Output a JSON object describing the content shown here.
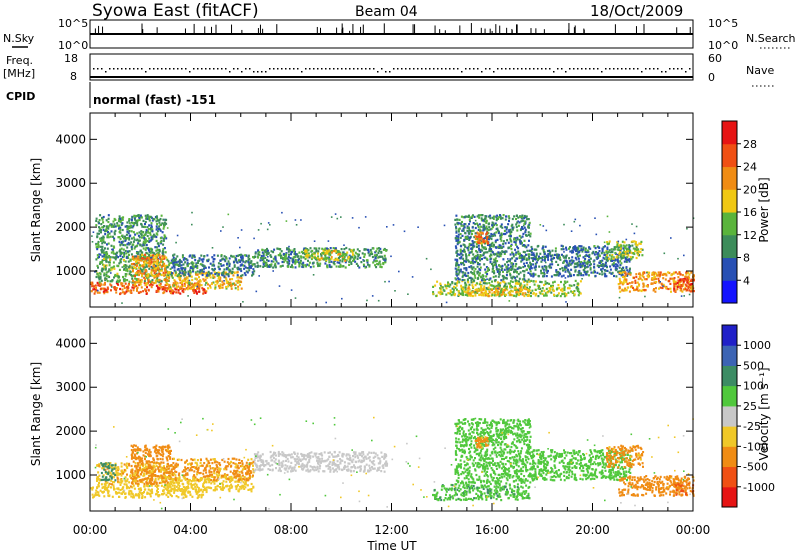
{
  "header": {
    "title": "Syowa East (fitACF)",
    "beam": "Beam 04",
    "date": "18/Oct/2009"
  },
  "strip_noise": {
    "left_label": "N.Sky",
    "right_label": "N.Search",
    "left_ticks": [
      "10^5",
      "10^0"
    ],
    "right_ticks": [
      "10^5",
      "10^0"
    ]
  },
  "strip_freq": {
    "left_label_1": "Freq.",
    "left_label_2": "[MHz]",
    "right_label": "Nave",
    "left_ticks": [
      "18",
      "8"
    ],
    "right_ticks": [
      "60",
      "0"
    ]
  },
  "cpid": {
    "label": "CPID",
    "value": "normal (fast) -151"
  },
  "power_panel": {
    "ylabel": "Slant Range [km]",
    "ytick_labels": [
      "1000",
      "2000",
      "3000",
      "4000"
    ],
    "colorbar_label": "Power [dB]",
    "colorbar_ticks": [
      "4",
      "8",
      "12",
      "16",
      "20",
      "24",
      "28"
    ]
  },
  "velocity_panel": {
    "ylabel": "Slant Range [km]",
    "ytick_labels": [
      "1000",
      "2000",
      "3000",
      "4000"
    ],
    "colorbar_label": "Velocity [m s⁻¹]",
    "colorbar_ticks": [
      "1000",
      "500",
      "100",
      "25",
      "-25",
      "-100",
      "-500",
      "-1000"
    ]
  },
  "x_axis": {
    "label": "Time UT",
    "tick_labels": [
      "00:00",
      "04:00",
      "08:00",
      "12:00",
      "16:00",
      "20:00",
      "00:00"
    ]
  },
  "colors": {
    "power_scale": [
      "#1414ff",
      "#2850b4",
      "#3c8c5a",
      "#5ab43c",
      "#f0c814",
      "#f08c14",
      "#f05014",
      "#e61414"
    ],
    "velocity_scale": [
      "#2020c8",
      "#3c64b4",
      "#3c8c64",
      "#50c83c",
      "#c8c8c8",
      "#f0c828",
      "#f08c14",
      "#f05014",
      "#e61414"
    ]
  },
  "chart_data": [
    {
      "type": "heatmap",
      "title": "Power",
      "xlabel": "Time UT",
      "ylabel": "Slant Range [km]",
      "xlim": [
        0,
        24
      ],
      "ylim": [
        180,
        4600
      ],
      "colorbar_range": [
        0,
        30
      ],
      "regions": [
        {
          "t0": 0.0,
          "t1": 4.6,
          "r0": 500,
          "r1": 760,
          "value": 24
        },
        {
          "t0": 0.2,
          "t1": 3.2,
          "r0": 760,
          "r1": 1300,
          "value": 12
        },
        {
          "t0": 0.2,
          "t1": 3.0,
          "r0": 1300,
          "r1": 2300,
          "value": 10
        },
        {
          "t0": 1.6,
          "t1": 3.0,
          "r0": 700,
          "r1": 1400,
          "value": 20
        },
        {
          "t0": 3.0,
          "t1": 6.0,
          "r0": 600,
          "r1": 1000,
          "value": 18
        },
        {
          "t0": 3.2,
          "t1": 6.5,
          "r0": 900,
          "r1": 1400,
          "value": 8
        },
        {
          "t0": 6.5,
          "t1": 11.8,
          "r0": 1100,
          "r1": 1550,
          "value": 10
        },
        {
          "t0": 8.5,
          "t1": 10.5,
          "r0": 1250,
          "r1": 1500,
          "value": 16
        },
        {
          "t0": 13.6,
          "t1": 19.5,
          "r0": 450,
          "r1": 800,
          "value": 14
        },
        {
          "t0": 14.5,
          "t1": 17.5,
          "r0": 800,
          "r1": 2300,
          "value": 9
        },
        {
          "t0": 15.3,
          "t1": 15.8,
          "r0": 1650,
          "r1": 1900,
          "value": 22
        },
        {
          "t0": 15.0,
          "t1": 17.5,
          "r0": 450,
          "r1": 650,
          "value": 18
        },
        {
          "t0": 17.5,
          "t1": 21.5,
          "r0": 900,
          "r1": 1600,
          "value": 8
        },
        {
          "t0": 20.5,
          "t1": 22.0,
          "r0": 1300,
          "r1": 1700,
          "value": 14
        },
        {
          "t0": 21.0,
          "t1": 24.0,
          "r0": 550,
          "r1": 1000,
          "value": 20
        },
        {
          "t0": 23.2,
          "t1": 24.0,
          "r0": 550,
          "r1": 850,
          "value": 26
        }
      ]
    },
    {
      "type": "heatmap",
      "title": "Velocity",
      "xlabel": "Time UT",
      "ylabel": "Slant Range [km]",
      "xlim": [
        0,
        24
      ],
      "ylim": [
        180,
        4600
      ],
      "colorbar_range": [
        -1000,
        1000
      ],
      "regions": [
        {
          "t0": 0.0,
          "t1": 4.6,
          "r0": 500,
          "r1": 760,
          "value": -60
        },
        {
          "t0": 0.2,
          "t1": 3.2,
          "r0": 760,
          "r1": 1300,
          "value": -80
        },
        {
          "t0": 1.6,
          "t1": 3.2,
          "r0": 800,
          "r1": 1700,
          "value": -300
        },
        {
          "t0": 0.4,
          "t1": 1.0,
          "r0": 900,
          "r1": 1300,
          "value": 200
        },
        {
          "t0": 3.0,
          "t1": 6.5,
          "r0": 650,
          "r1": 1000,
          "value": -60
        },
        {
          "t0": 3.2,
          "t1": 6.5,
          "r0": 900,
          "r1": 1400,
          "value": -120
        },
        {
          "t0": 6.5,
          "t1": 11.8,
          "r0": 1100,
          "r1": 1550,
          "value": 0
        },
        {
          "t0": 13.6,
          "t1": 17.5,
          "r0": 450,
          "r1": 800,
          "value": 80
        },
        {
          "t0": 14.5,
          "t1": 17.5,
          "r0": 800,
          "r1": 2300,
          "value": 60
        },
        {
          "t0": 15.3,
          "t1": 15.8,
          "r0": 1650,
          "r1": 1900,
          "value": -150
        },
        {
          "t0": 17.5,
          "t1": 21.5,
          "r0": 900,
          "r1": 1600,
          "value": 70
        },
        {
          "t0": 20.5,
          "t1": 22.0,
          "r0": 1200,
          "r1": 1700,
          "value": -150
        },
        {
          "t0": 21.0,
          "t1": 24.0,
          "r0": 550,
          "r1": 1000,
          "value": -200
        },
        {
          "t0": 23.2,
          "t1": 24.0,
          "r0": 550,
          "r1": 850,
          "value": -500
        }
      ]
    }
  ]
}
